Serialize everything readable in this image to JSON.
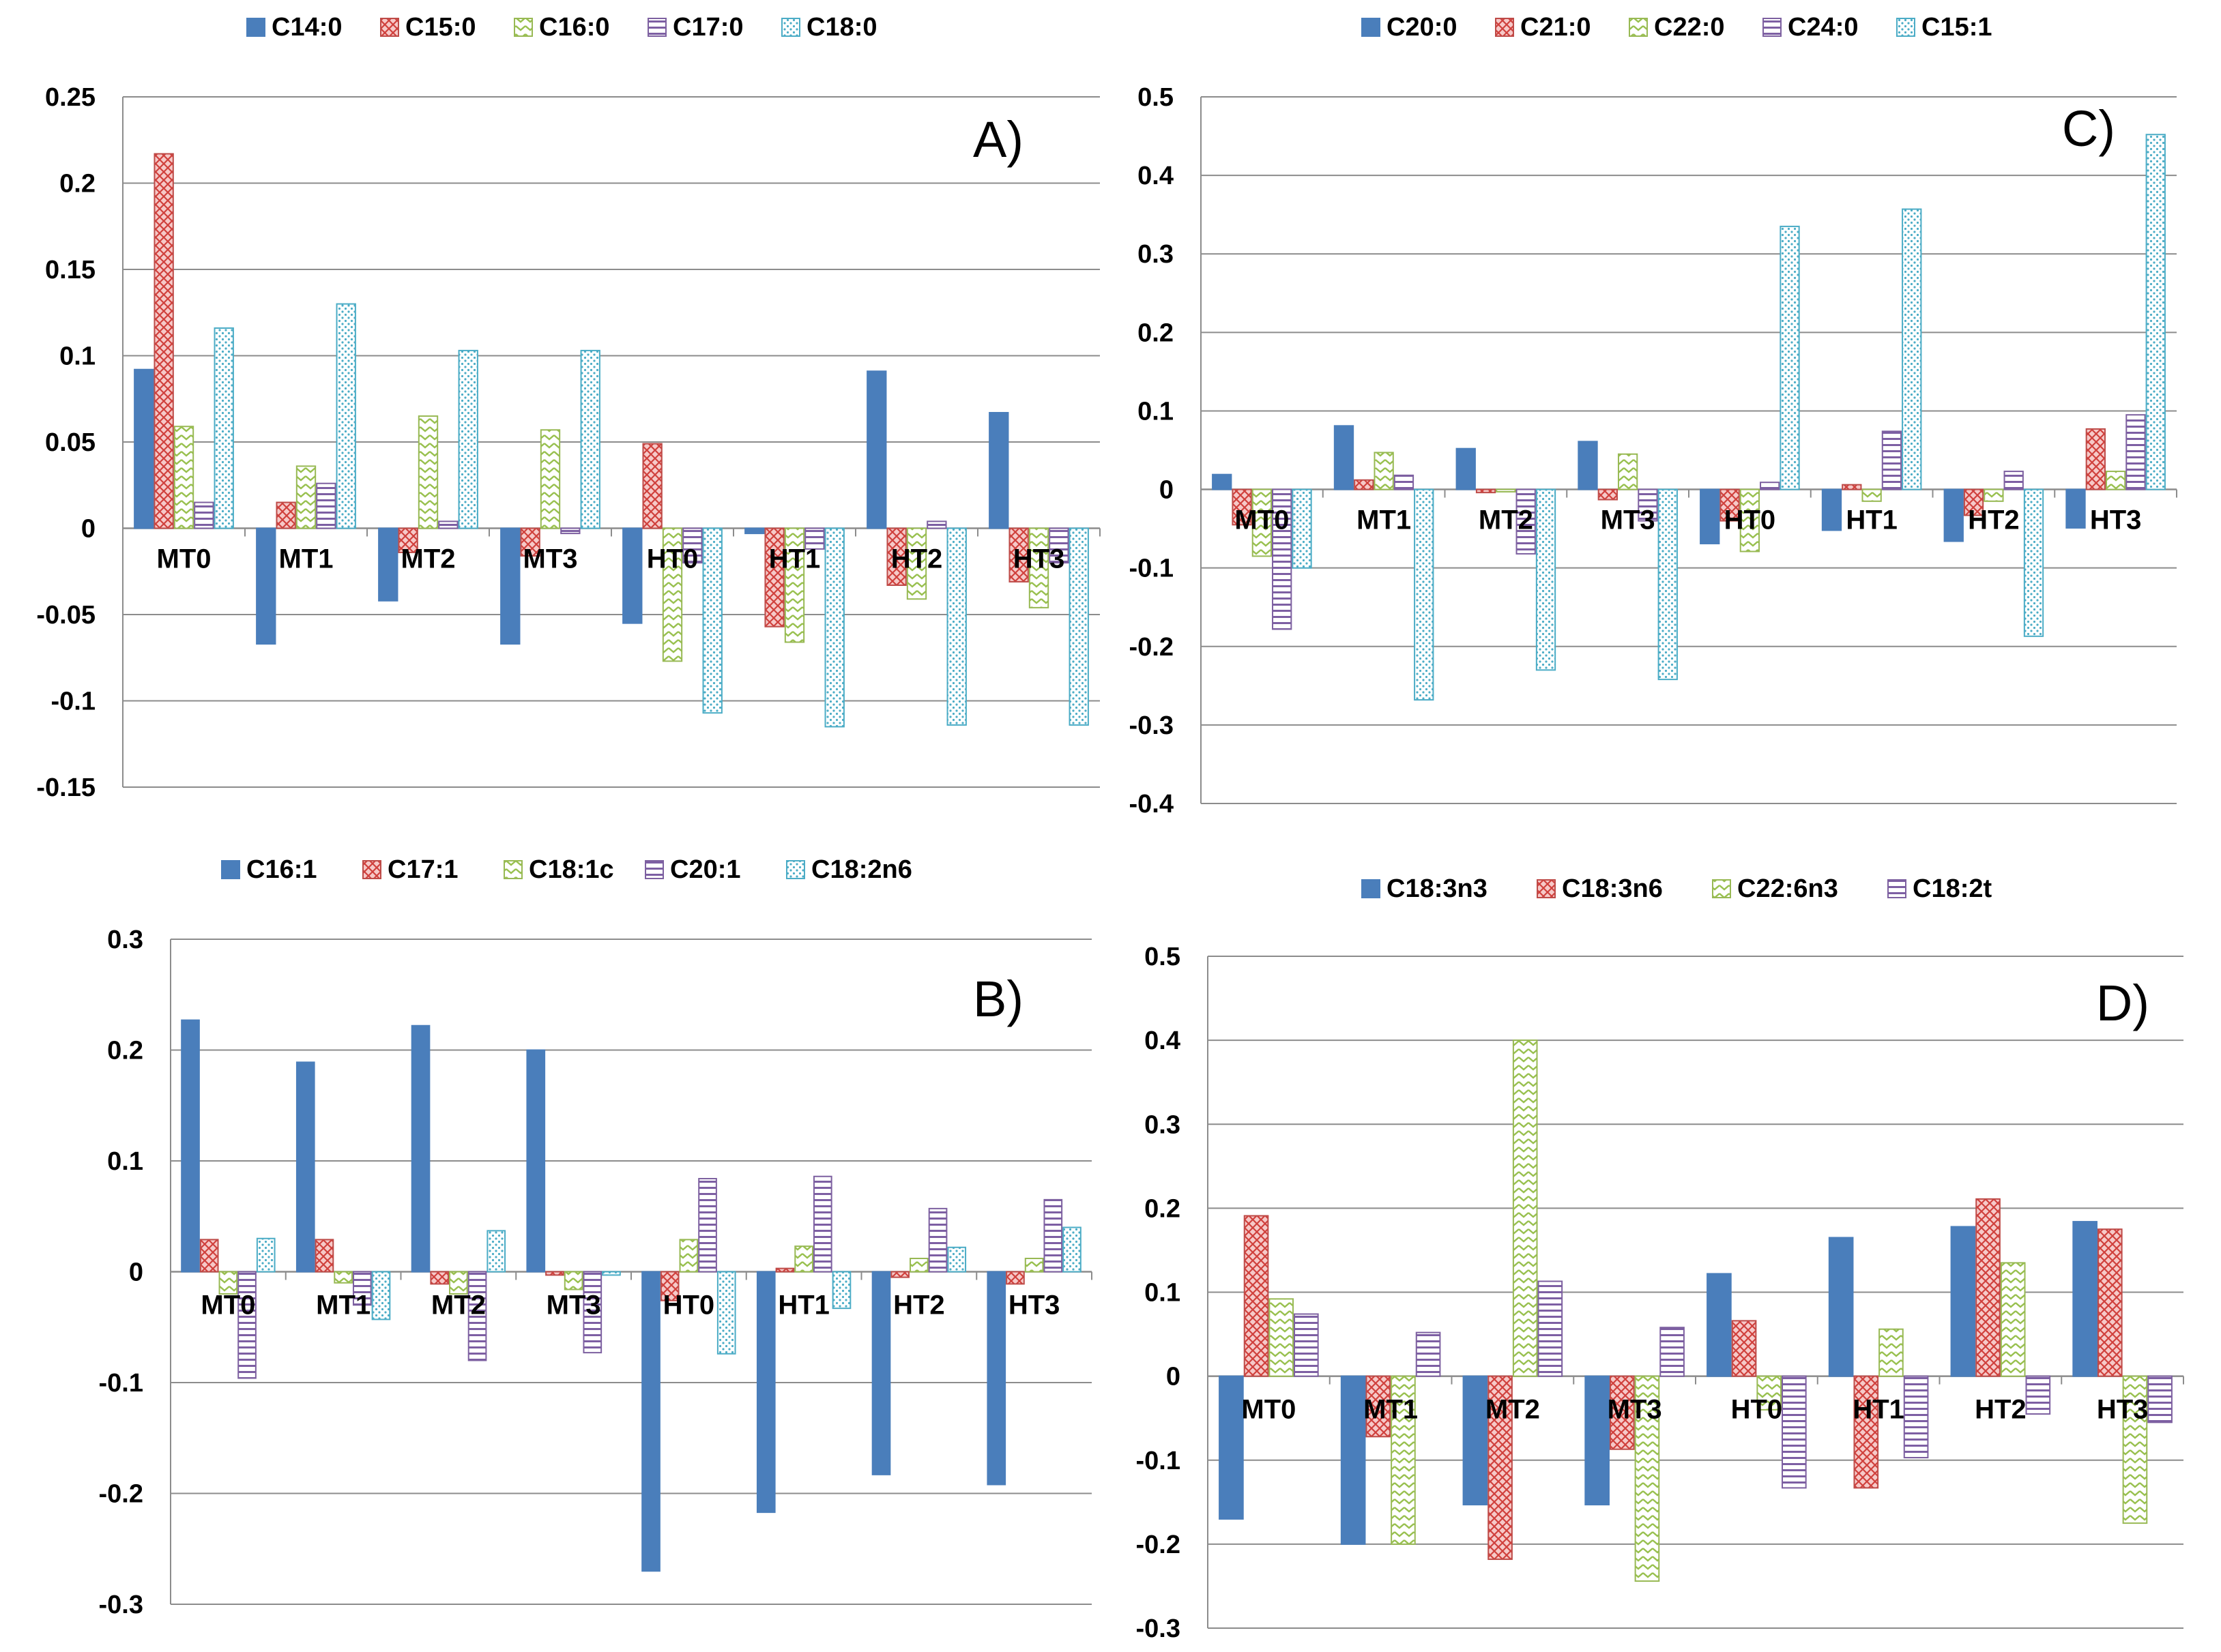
{
  "patterns": {
    "s0": "solid",
    "s1": "crosshatch",
    "s2": "zigzag",
    "s3": "horizontal-lines",
    "s4": "dots"
  },
  "colors": {
    "s0": {
      "fill": "#4a7ebb",
      "stroke": "#4a7ebb",
      "bg": "#4a7ebb"
    },
    "s1": {
      "fill": "#e04848",
      "stroke": "#be4b48",
      "bg": "#f6c9c8"
    },
    "s2": {
      "fill": "#98c04e",
      "stroke": "#98b954",
      "bg": "#ffffff"
    },
    "s3": {
      "fill": "#7d5fa3",
      "stroke": "#7d60a0",
      "bg": "#ffffff"
    },
    "s4": {
      "fill": "#4bacc6",
      "stroke": "#4bacc6",
      "bg": "#ffffff"
    }
  },
  "chart_data": [
    {
      "id": "A",
      "type": "bar",
      "annotation": "A)",
      "categories": [
        "MT0",
        "MT1",
        "MT2",
        "MT3",
        "HT0",
        "HT1",
        "HT2",
        "HT3"
      ],
      "ylim": [
        -0.15,
        0.25
      ],
      "yticks": [
        0.25,
        0.2,
        0.15,
        0.1,
        0.05,
        0,
        -0.05,
        -0.1,
        -0.15
      ],
      "ytick_labels": [
        "0.25",
        "0.2",
        "0.15",
        "0.1",
        "0.05",
        "0",
        "-0.05",
        "-0.1",
        "-0.15"
      ],
      "series": [
        {
          "name": "C14:0",
          "values": [
            0.092,
            -0.067,
            -0.042,
            -0.067,
            -0.055,
            -0.003,
            0.091,
            0.067
          ]
        },
        {
          "name": "C15:0",
          "values": [
            0.217,
            0.015,
            -0.014,
            -0.016,
            0.049,
            -0.057,
            -0.033,
            -0.031
          ]
        },
        {
          "name": "C16:0",
          "values": [
            0.059,
            0.036,
            0.065,
            0.057,
            -0.077,
            -0.066,
            -0.041,
            -0.046
          ]
        },
        {
          "name": "C17:0",
          "values": [
            0.015,
            0.026,
            0.004,
            -0.003,
            -0.02,
            -0.012,
            0.004,
            -0.02
          ]
        },
        {
          "name": "C18:0",
          "values": [
            0.116,
            0.13,
            0.103,
            0.103,
            -0.107,
            -0.115,
            -0.114,
            -0.114
          ]
        }
      ]
    },
    {
      "id": "C",
      "type": "bar",
      "annotation": "C)",
      "categories": [
        "MT0",
        "MT1",
        "MT2",
        "MT3",
        "HT0",
        "HT1",
        "HT2",
        "HT3"
      ],
      "ylim": [
        -0.4,
        0.5
      ],
      "yticks": [
        0.5,
        0.4,
        0.3,
        0.2,
        0.1,
        0,
        -0.1,
        -0.2,
        -0.3,
        -0.4
      ],
      "ytick_labels": [
        "0.5",
        "0.4",
        "0.3",
        "0.2",
        "0.1",
        "0",
        "-0.1",
        "-0.2",
        "-0.3",
        "-0.4"
      ],
      "series": [
        {
          "name": "C20:0",
          "values": [
            0.019,
            0.081,
            0.052,
            0.061,
            -0.069,
            -0.052,
            -0.066,
            -0.049
          ]
        },
        {
          "name": "C21:0",
          "values": [
            -0.045,
            0.012,
            -0.004,
            -0.013,
            -0.04,
            0.006,
            -0.033,
            0.077
          ]
        },
        {
          "name": "C22:0",
          "values": [
            -0.085,
            0.047,
            -0.003,
            0.045,
            -0.079,
            -0.015,
            -0.015,
            0.023
          ]
        },
        {
          "name": "C24:0",
          "values": [
            -0.178,
            0.018,
            -0.082,
            -0.04,
            0.009,
            0.074,
            0.023,
            0.095
          ]
        },
        {
          "name": "C15:1",
          "values": [
            -0.1,
            -0.268,
            -0.23,
            -0.242,
            0.335,
            0.357,
            -0.187,
            0.452
          ]
        }
      ]
    },
    {
      "id": "B",
      "type": "bar",
      "annotation": "B)",
      "categories": [
        "MT0",
        "MT1",
        "MT2",
        "MT3",
        "HT0",
        "HT1",
        "HT2",
        "HT3"
      ],
      "ylim": [
        -0.3,
        0.3
      ],
      "yticks": [
        0.3,
        0.2,
        0.1,
        0,
        -0.1,
        -0.2,
        -0.3
      ],
      "ytick_labels": [
        "0.3",
        "0.2",
        "0.1",
        "0",
        "-0.1",
        "-0.2",
        "-0.3"
      ],
      "series": [
        {
          "name": "C16:1",
          "values": [
            0.227,
            0.189,
            0.222,
            0.2,
            -0.27,
            -0.217,
            -0.183,
            -0.192
          ]
        },
        {
          "name": "C17:1",
          "values": [
            0.029,
            0.029,
            -0.011,
            -0.003,
            -0.026,
            0.003,
            -0.005,
            -0.011
          ]
        },
        {
          "name": "C18:1c",
          "values": [
            -0.02,
            -0.01,
            -0.02,
            -0.016,
            0.029,
            0.023,
            0.012,
            0.012
          ]
        },
        {
          "name": "C20:1",
          "values": [
            -0.096,
            -0.03,
            -0.08,
            -0.073,
            0.084,
            0.086,
            0.057,
            0.065
          ]
        },
        {
          "name": "C18:2n6",
          "values": [
            0.03,
            -0.043,
            0.037,
            -0.003,
            -0.074,
            -0.033,
            0.022,
            0.04
          ]
        }
      ]
    },
    {
      "id": "D",
      "type": "bar",
      "annotation": "D)",
      "categories": [
        "MT0",
        "MT1",
        "MT2",
        "MT3",
        "HT0",
        "HT1",
        "HT2",
        "HT3"
      ],
      "ylim": [
        -0.3,
        0.5
      ],
      "yticks": [
        0.5,
        0.4,
        0.3,
        0.2,
        0.1,
        0,
        -0.1,
        -0.2,
        -0.3
      ],
      "ytick_labels": [
        "0.5",
        "0.4",
        "0.3",
        "0.2",
        "0.1",
        "0",
        "-0.1",
        "-0.2",
        "-0.3"
      ],
      "series": [
        {
          "name": "C18:3n3",
          "values": [
            -0.17,
            -0.2,
            -0.153,
            -0.153,
            0.122,
            0.165,
            0.178,
            0.184
          ]
        },
        {
          "name": "C18:3n6",
          "values": [
            0.191,
            -0.072,
            -0.218,
            -0.087,
            0.066,
            -0.133,
            0.211,
            0.175
          ]
        },
        {
          "name": "C22:6n3",
          "values": [
            0.092,
            -0.2,
            0.4,
            -0.244,
            -0.04,
            0.056,
            0.135,
            -0.175
          ]
        },
        {
          "name": "C18:2t",
          "values": [
            0.074,
            0.052,
            0.113,
            0.058,
            -0.133,
            -0.097,
            -0.045,
            -0.055
          ]
        }
      ]
    }
  ]
}
